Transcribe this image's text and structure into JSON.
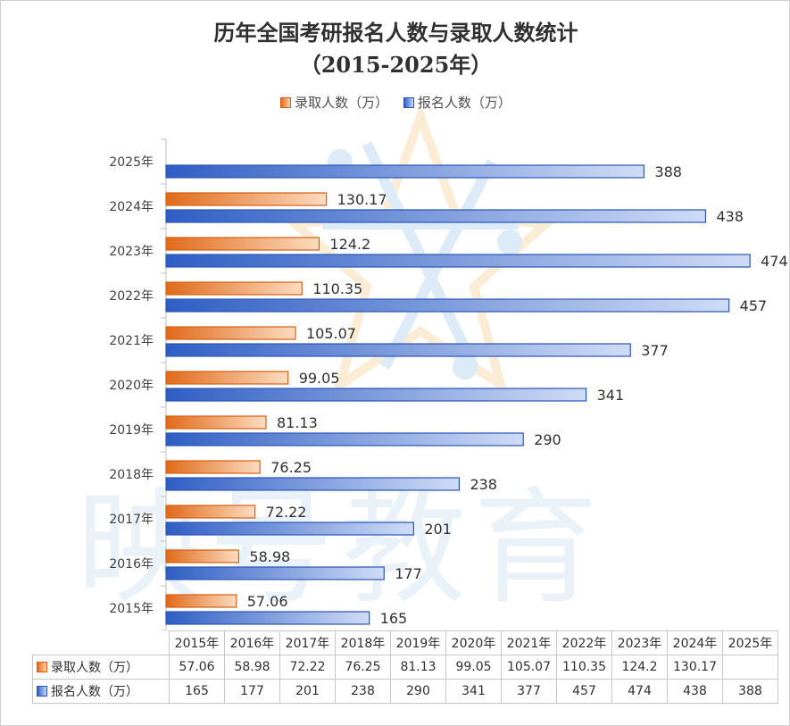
{
  "chart_title_line1": "历年全国考研报名人数与录取人数统计",
  "chart_title_line2": "（2015-2025年）",
  "watermark": "映号教育",
  "colors": {
    "admitted": "#e8782a",
    "applicants": "#3b6fd4"
  },
  "chart_data": {
    "type": "bar",
    "orientation": "horizontal",
    "categories": [
      "2015年",
      "2016年",
      "2017年",
      "2018年",
      "2019年",
      "2020年",
      "2021年",
      "2022年",
      "2023年",
      "2024年",
      "2025年"
    ],
    "series": [
      {
        "name": "录取人数（万）",
        "values": [
          57.06,
          58.98,
          72.22,
          76.25,
          81.13,
          99.05,
          105.07,
          110.35,
          124.2,
          130.17,
          null
        ]
      },
      {
        "name": "报名人数（万）",
        "values": [
          165,
          177,
          201,
          238,
          290,
          341,
          377,
          457,
          474,
          438,
          388
        ]
      }
    ],
    "value_labels": {
      "admitted": [
        "57.06",
        "58.98",
        "72.22",
        "76.25",
        "81.13",
        "99.05",
        "105.07",
        "110.35",
        "124.2",
        "130.17",
        ""
      ],
      "applicants": [
        "165",
        "177",
        "201",
        "238",
        "290",
        "341",
        "377",
        "457",
        "474",
        "438",
        "388"
      ]
    },
    "legend_position": "top",
    "data_table": true
  }
}
